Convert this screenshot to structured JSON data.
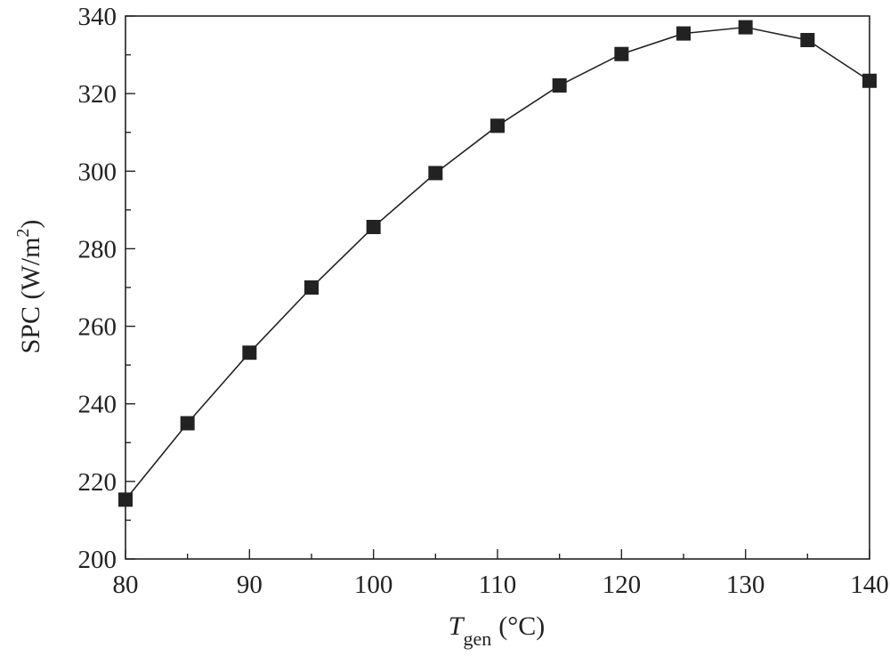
{
  "chart_data": {
    "type": "line",
    "marker": "square",
    "xlabel": {
      "symbol": "T",
      "subscript": "gen",
      "unit": "(°C)"
    },
    "ylabel": {
      "text": "SPC (W/m",
      "superscript": "2",
      "suffix": ")"
    },
    "xlim": [
      80,
      140
    ],
    "ylim": [
      200,
      340
    ],
    "xticks": [
      80,
      90,
      100,
      110,
      120,
      130,
      140
    ],
    "yticks": [
      200,
      220,
      240,
      260,
      280,
      300,
      320,
      340
    ],
    "grid": false,
    "x": [
      80,
      85,
      90,
      95,
      100,
      105,
      110,
      115,
      120,
      125,
      130,
      135,
      140
    ],
    "series": [
      {
        "values": [
          215.3,
          235,
          253.2,
          270,
          285.6,
          299.5,
          311.7,
          322.1,
          330.2,
          335.5,
          337.1,
          333.8,
          323.3
        ]
      }
    ],
    "colors": {
      "line": "#222222",
      "marker": "#222222",
      "axis": "#222222"
    }
  }
}
